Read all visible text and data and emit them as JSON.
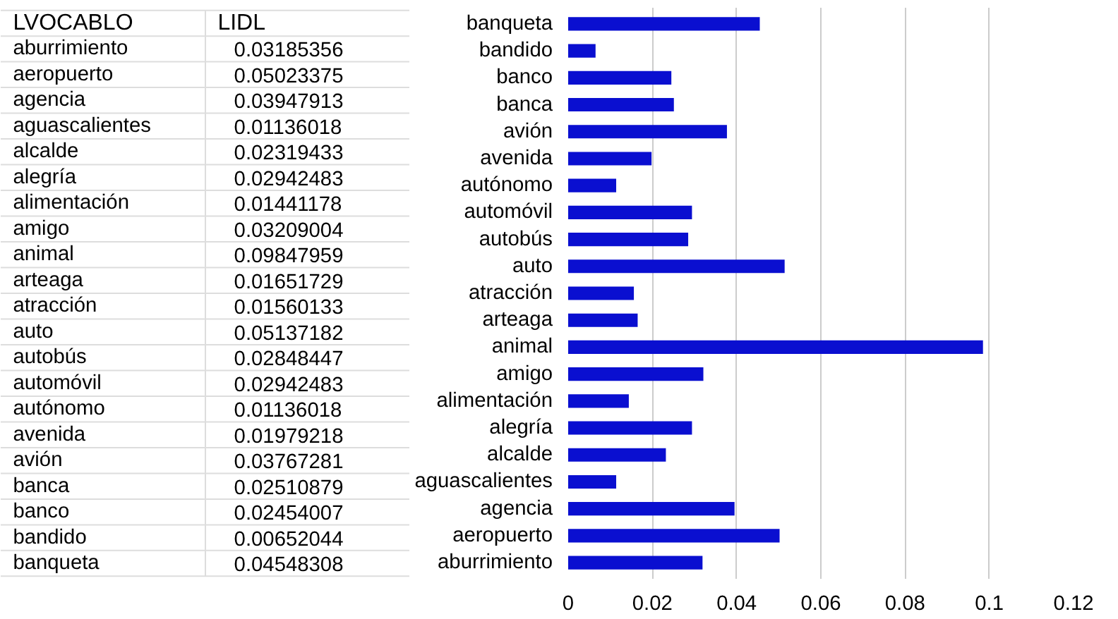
{
  "chart_data": [
    {
      "type": "other",
      "annotations": [
        "LVOCABLO",
        "LIDL"
      ],
      "categories": [
        "aburrimiento",
        "aeropuerto",
        "agencia",
        "aguascalientes",
        "alcalde",
        "alegría",
        "alimentación",
        "amigo",
        "animal",
        "arteaga",
        "atracción",
        "auto",
        "autobús",
        "automóvil",
        "autónomo",
        "avenida",
        "avión",
        "banca",
        "banco",
        "bandido",
        "banqueta"
      ],
      "values": [
        0.03185356,
        0.05023375,
        0.03947913,
        0.01136018,
        0.02319433,
        0.02942483,
        0.01441178,
        0.03209004,
        0.09847959,
        0.01651729,
        0.01560133,
        0.05137182,
        0.02848447,
        0.02942483,
        0.01136018,
        0.01979218,
        0.03767281,
        0.02510879,
        0.02454007,
        0.00652044,
        0.04548308
      ],
      "data_labels": true
    },
    {
      "type": "bar",
      "orientation": "horizontal",
      "categories": [
        "banqueta",
        "bandido",
        "banco",
        "banca",
        "avión",
        "avenida",
        "autónomo",
        "automóvil",
        "autobús",
        "auto",
        "atracción",
        "arteaga",
        "animal",
        "amigo",
        "alimentación",
        "alegría",
        "alcalde",
        "aguascalientes",
        "agencia",
        "aeropuerto",
        "aburrimiento"
      ],
      "values": [
        0.0455,
        0.0065,
        0.0245,
        0.0251,
        0.0377,
        0.0198,
        0.0114,
        0.0294,
        0.0285,
        0.0514,
        0.0156,
        0.0165,
        0.0985,
        0.0321,
        0.0144,
        0.0294,
        0.0232,
        0.0114,
        0.0395,
        0.0502,
        0.0319
      ],
      "color": "#0a0fd0",
      "xlim": [
        0,
        0.12
      ],
      "xticks": [
        0,
        0.02,
        0.04,
        0.06,
        0.08,
        0.1,
        0.12
      ],
      "grid": "x"
    }
  ]
}
